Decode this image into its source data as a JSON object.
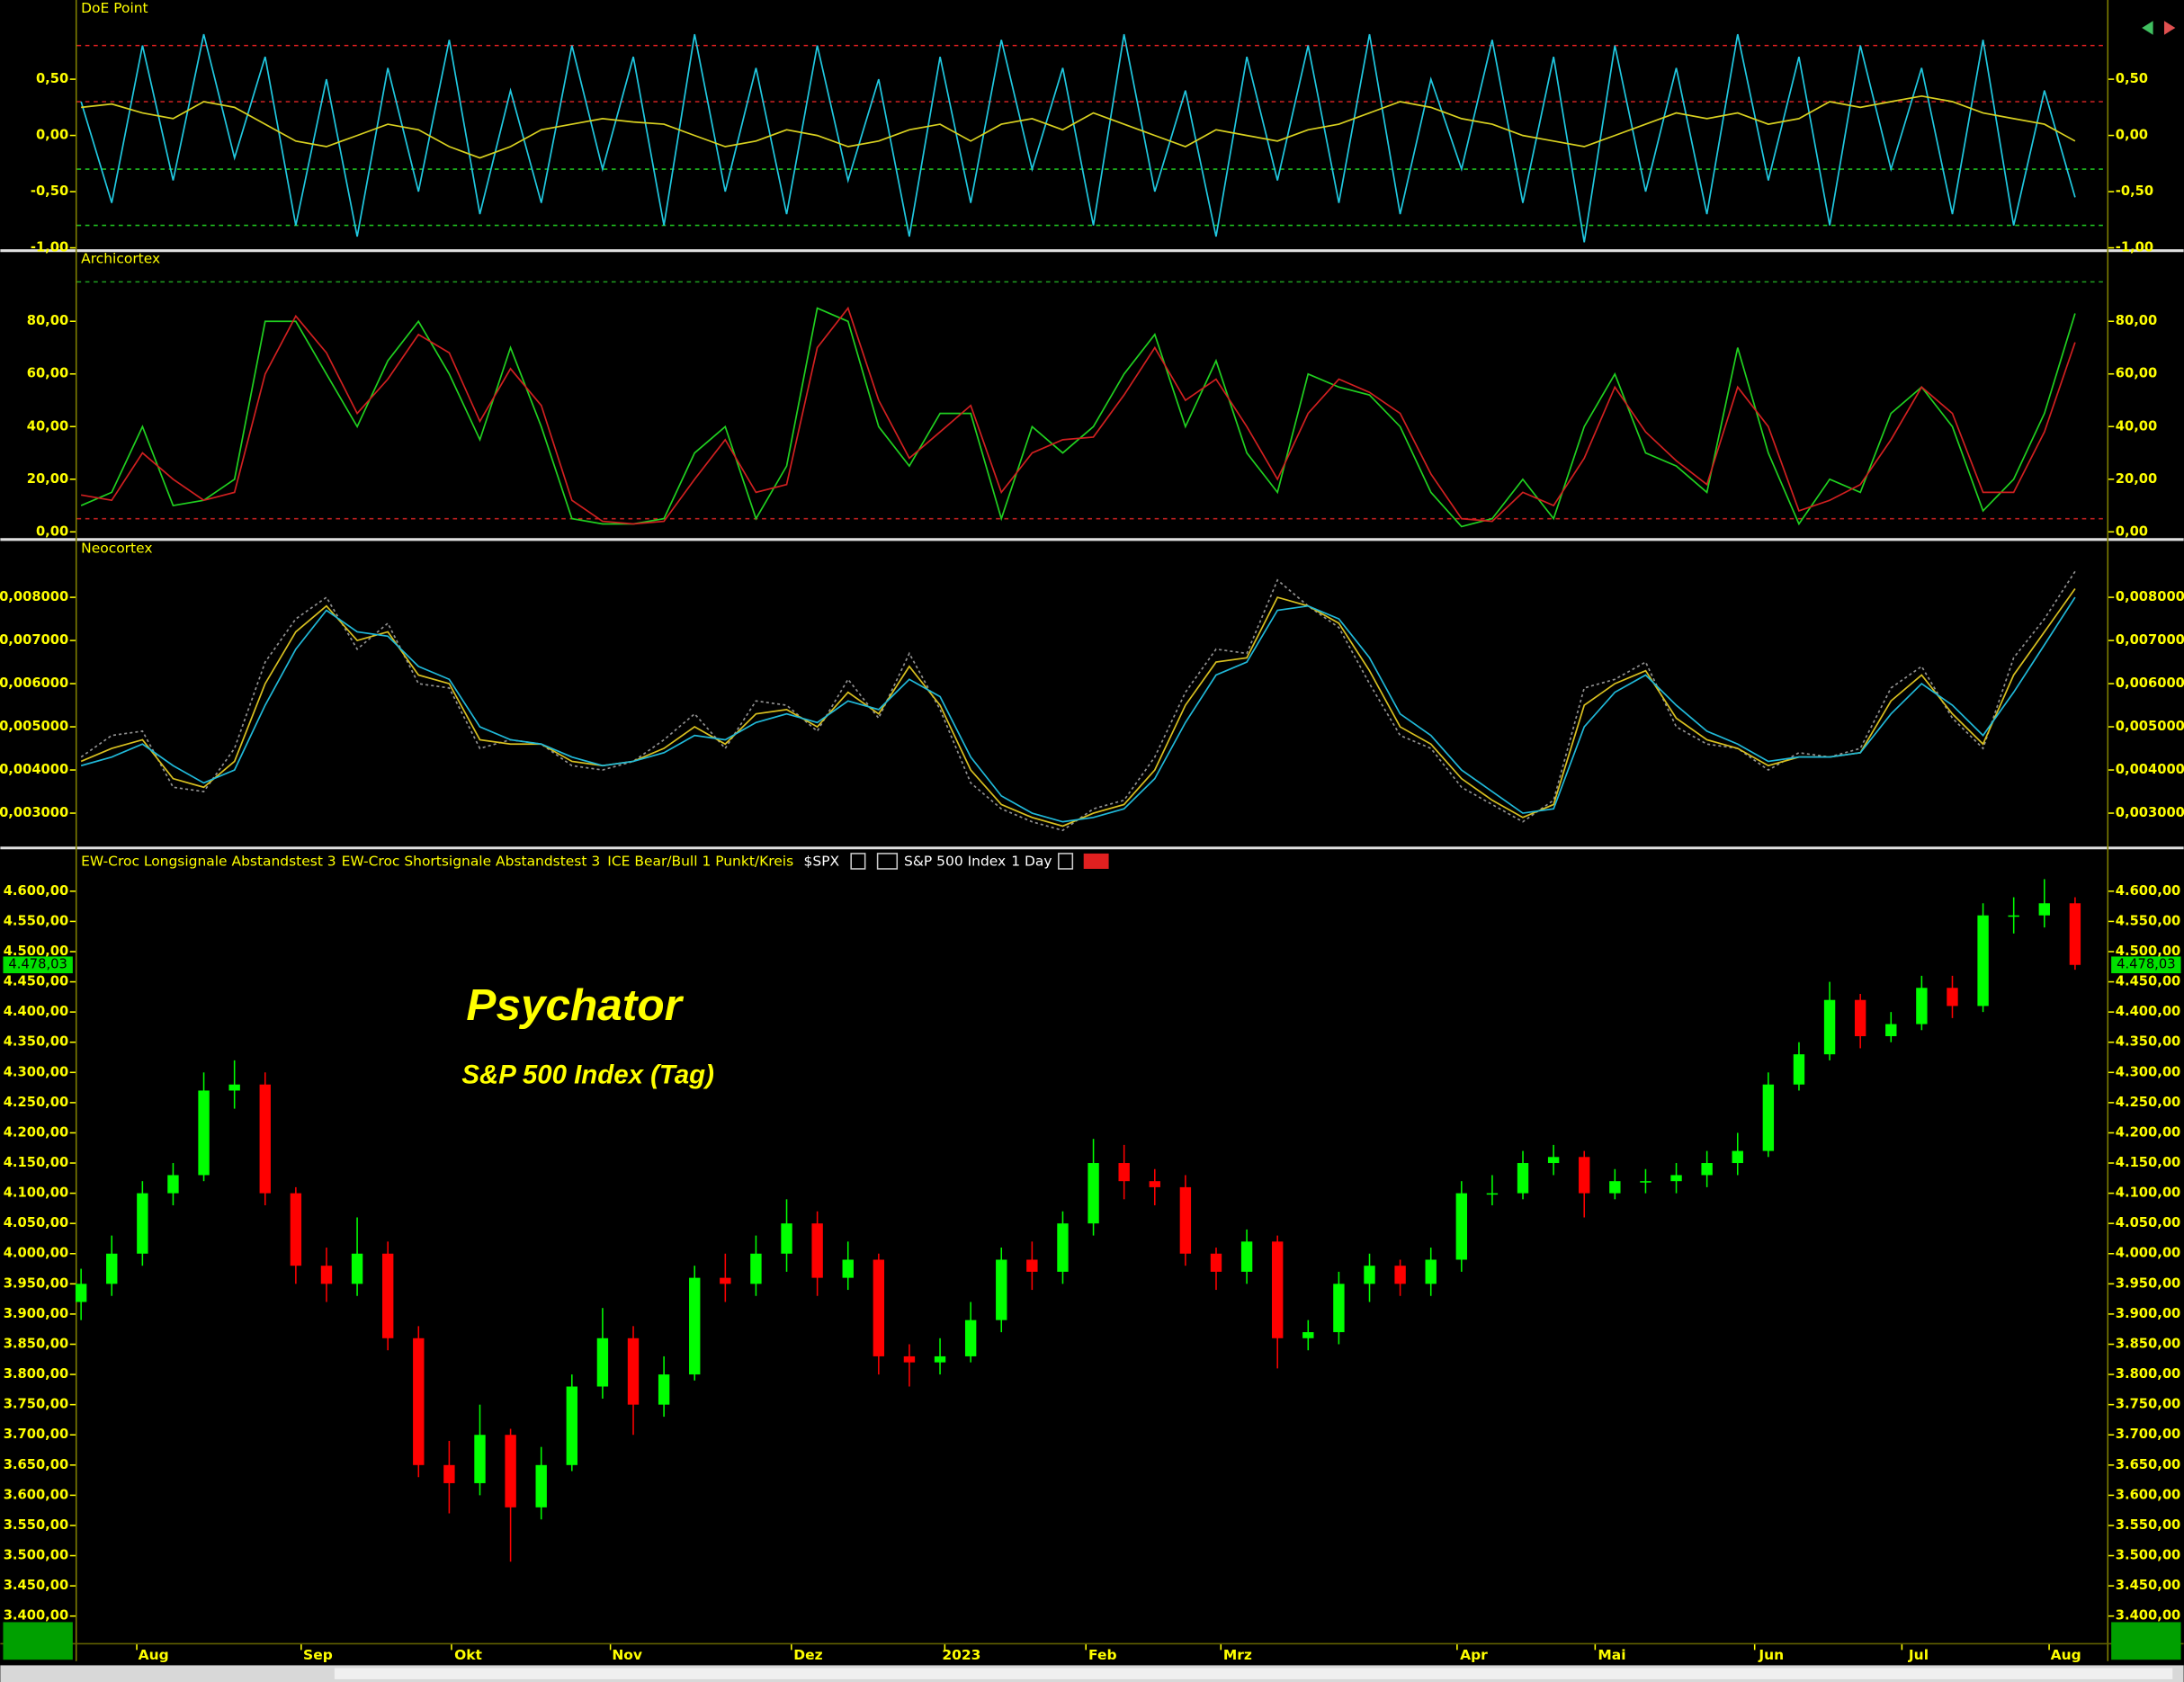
{
  "chart_data": [
    {
      "type": "line",
      "title": "DoE Point",
      "ylim": [
        -1.0,
        1.18
      ],
      "yticks": [
        {
          "value": -1.0,
          "label": "-1,00"
        },
        {
          "value": -0.5,
          "label": "-0,50"
        },
        {
          "value": 0,
          "label": "0,00"
        },
        {
          "value": 0.5,
          "label": "0,50"
        }
      ],
      "hlines": [
        {
          "value": 0.8,
          "color": "#e02020"
        },
        {
          "value": 0.3,
          "color": "#c02020"
        },
        {
          "value": -0.3,
          "color": "#20c020"
        },
        {
          "value": -0.8,
          "color": "#20c020"
        }
      ],
      "series": [
        {
          "color": "#20c8e0",
          "values": [
            0.3,
            -0.6,
            0.8,
            -0.4,
            0.9,
            -0.2,
            0.7,
            -0.8,
            0.5,
            -0.9,
            0.6,
            -0.5,
            0.85,
            -0.7,
            0.4,
            -0.6,
            0.8,
            -0.3,
            0.7,
            -0.8,
            0.9,
            -0.5,
            0.6,
            -0.7,
            0.8,
            -0.4,
            0.5,
            -0.9,
            0.7,
            -0.6,
            0.85,
            -0.3,
            0.6,
            -0.8,
            0.9,
            -0.5,
            0.4,
            -0.9,
            0.7,
            -0.4,
            0.8,
            -0.6,
            0.9,
            -0.7,
            0.5,
            -0.3,
            0.85,
            -0.6,
            0.7,
            -0.95,
            0.8,
            -0.5,
            0.6,
            -0.7,
            0.9,
            -0.4,
            0.7,
            -0.8,
            0.8,
            -0.3,
            0.6,
            -0.7,
            0.85,
            -0.8,
            0.4,
            -0.55
          ]
        },
        {
          "color": "#d8d020",
          "values": [
            0.25,
            0.28,
            0.2,
            0.15,
            0.3,
            0.25,
            0.1,
            -0.05,
            -0.1,
            0.0,
            0.1,
            0.05,
            -0.1,
            -0.2,
            -0.1,
            0.05,
            0.1,
            0.15,
            0.12,
            0.1,
            0.0,
            -0.1,
            -0.05,
            0.05,
            0.0,
            -0.1,
            -0.05,
            0.05,
            0.1,
            -0.05,
            0.1,
            0.15,
            0.05,
            0.2,
            0.1,
            0.0,
            -0.1,
            0.05,
            0.0,
            -0.05,
            0.05,
            0.1,
            0.2,
            0.3,
            0.25,
            0.15,
            0.1,
            0.0,
            -0.05,
            -0.1,
            0.0,
            0.1,
            0.2,
            0.15,
            0.2,
            0.1,
            0.15,
            0.3,
            0.25,
            0.3,
            0.35,
            0.3,
            0.2,
            0.15,
            0.1,
            -0.05
          ]
        }
      ]
    },
    {
      "type": "line",
      "title": "Archicortex",
      "ylim": [
        -1.6,
        105.8
      ],
      "yticks": [
        {
          "value": 0,
          "label": "0,00"
        },
        {
          "value": 20,
          "label": "20,00"
        },
        {
          "value": 40,
          "label": "40,00"
        },
        {
          "value": 60,
          "label": "60,00"
        },
        {
          "value": 80,
          "label": "80,00"
        }
      ],
      "hlines": [
        {
          "value": 95,
          "color": "#20a020"
        },
        {
          "value": 5,
          "color": "#c02020"
        }
      ],
      "series": [
        {
          "color": "#20d020",
          "values": [
            10,
            15,
            40,
            10,
            12,
            20,
            80,
            80,
            60,
            40,
            65,
            80,
            60,
            35,
            70,
            40,
            5,
            3,
            3,
            5,
            30,
            40,
            5,
            25,
            85,
            80,
            40,
            25,
            45,
            45,
            5,
            40,
            30,
            40,
            60,
            75,
            40,
            65,
            30,
            15,
            60,
            55,
            52,
            40,
            15,
            2,
            5,
            20,
            5,
            40,
            60,
            30,
            25,
            15,
            70,
            30,
            3,
            20,
            15,
            45,
            55,
            40,
            8,
            20,
            45,
            83
          ]
        },
        {
          "color": "#d02020",
          "values": [
            14,
            12,
            30,
            20,
            12,
            15,
            60,
            82,
            68,
            45,
            58,
            75,
            68,
            42,
            62,
            48,
            12,
            4,
            3,
            4,
            20,
            35,
            15,
            18,
            70,
            85,
            50,
            28,
            38,
            48,
            15,
            30,
            35,
            36,
            52,
            70,
            50,
            58,
            40,
            20,
            45,
            58,
            53,
            45,
            22,
            5,
            4,
            15,
            10,
            28,
            55,
            38,
            27,
            18,
            55,
            40,
            8,
            12,
            18,
            35,
            55,
            45,
            15,
            15,
            38,
            72
          ]
        }
      ]
    },
    {
      "type": "line",
      "title": "Neocortex",
      "ylim": [
        0.002258,
        0.009258
      ],
      "yticks": [
        {
          "value": 0.003,
          "label": "0,003000"
        },
        {
          "value": 0.004,
          "label": "0,004000"
        },
        {
          "value": 0.005,
          "label": "0,005000"
        },
        {
          "value": 0.006,
          "label": "0,006000"
        },
        {
          "value": 0.007,
          "label": "0,007000"
        },
        {
          "value": 0.008,
          "label": "0,008000"
        }
      ],
      "series": [
        {
          "color": "#909090",
          "style": "dotted",
          "values": [
            0.0043,
            0.0048,
            0.0049,
            0.0036,
            0.0035,
            0.0045,
            0.0065,
            0.0075,
            0.008,
            0.0068,
            0.0074,
            0.006,
            0.0059,
            0.0045,
            0.0047,
            0.0046,
            0.0041,
            0.004,
            0.0042,
            0.0047,
            0.0053,
            0.0045,
            0.0056,
            0.0055,
            0.0049,
            0.0061,
            0.0052,
            0.0067,
            0.0054,
            0.0037,
            0.0031,
            0.0028,
            0.0026,
            0.0031,
            0.0033,
            0.0043,
            0.0058,
            0.0068,
            0.0067,
            0.0084,
            0.0078,
            0.0073,
            0.006,
            0.0048,
            0.0045,
            0.0036,
            0.0032,
            0.0028,
            0.0033,
            0.0059,
            0.0061,
            0.0065,
            0.005,
            0.0046,
            0.0045,
            0.004,
            0.0044,
            0.0043,
            0.0045,
            0.0059,
            0.0064,
            0.0052,
            0.0045,
            0.0066,
            0.0075,
            0.0086
          ]
        },
        {
          "color": "#d8c020",
          "values": [
            0.0042,
            0.0045,
            0.0047,
            0.0038,
            0.0036,
            0.0042,
            0.006,
            0.0072,
            0.0078,
            0.007,
            0.0072,
            0.0062,
            0.006,
            0.0047,
            0.0046,
            0.0046,
            0.0042,
            0.0041,
            0.0042,
            0.0045,
            0.005,
            0.0046,
            0.0053,
            0.0054,
            0.005,
            0.0058,
            0.0053,
            0.0064,
            0.0055,
            0.004,
            0.0032,
            0.0029,
            0.0027,
            0.003,
            0.0032,
            0.004,
            0.0055,
            0.0065,
            0.0066,
            0.008,
            0.0078,
            0.0074,
            0.0063,
            0.005,
            0.0046,
            0.0038,
            0.0033,
            0.0029,
            0.0032,
            0.0055,
            0.006,
            0.0063,
            0.0052,
            0.0047,
            0.0045,
            0.0041,
            0.0043,
            0.0043,
            0.0044,
            0.0056,
            0.0062,
            0.0053,
            0.0046,
            0.0062,
            0.0072,
            0.0082
          ]
        },
        {
          "color": "#20b8d8",
          "values": [
            0.0041,
            0.0043,
            0.0046,
            0.0041,
            0.0037,
            0.004,
            0.0055,
            0.0068,
            0.0077,
            0.0072,
            0.0071,
            0.0064,
            0.0061,
            0.005,
            0.0047,
            0.0046,
            0.0043,
            0.0041,
            0.0042,
            0.0044,
            0.0048,
            0.0047,
            0.0051,
            0.0053,
            0.0051,
            0.0056,
            0.0054,
            0.0061,
            0.0057,
            0.0043,
            0.0034,
            0.003,
            0.0028,
            0.0029,
            0.0031,
            0.0038,
            0.0051,
            0.0062,
            0.0065,
            0.0077,
            0.0078,
            0.0075,
            0.0066,
            0.0053,
            0.0048,
            0.004,
            0.0035,
            0.003,
            0.0031,
            0.005,
            0.0058,
            0.0062,
            0.0055,
            0.0049,
            0.0046,
            0.0042,
            0.0043,
            0.0043,
            0.0044,
            0.0053,
            0.006,
            0.0055,
            0.0048,
            0.0058,
            0.0069,
            0.008
          ]
        }
      ]
    },
    {
      "type": "candlestick",
      "title": "Psychator",
      "subtitle": "S&P 500 Index (Tag)",
      "studies": [
        "EW-Croc Longsignale Abstandstest 3",
        "EW-Croc Shortsignale Abstandstest 3",
        "ICE Bear/Bull 1 Punkt/Kreis"
      ],
      "symbol": "$SPX",
      "instrument": "S&P 500 Index",
      "interval": "1 Day",
      "up_color": "#00ff00",
      "down_color": "#ff0000",
      "last": {
        "value": 4478.03,
        "label": "4.478,03"
      },
      "ylim": [
        3360,
        4667
      ],
      "yticks": [
        {
          "value": 3400,
          "label": "3.400,00"
        },
        {
          "value": 3450,
          "label": "3.450,00"
        },
        {
          "value": 3500,
          "label": "3.500,00"
        },
        {
          "value": 3550,
          "label": "3.550,00"
        },
        {
          "value": 3600,
          "label": "3.600,00"
        },
        {
          "value": 3650,
          "label": "3.650,00"
        },
        {
          "value": 3700,
          "label": "3.700,00"
        },
        {
          "value": 3750,
          "label": "3.750,00"
        },
        {
          "value": 3800,
          "label": "3.800,00"
        },
        {
          "value": 3850,
          "label": "3.850,00"
        },
        {
          "value": 3900,
          "label": "3.900,00"
        },
        {
          "value": 3950,
          "label": "3.950,00"
        },
        {
          "value": 4000,
          "label": "4.000,00"
        },
        {
          "value": 4050,
          "label": "4.050,00"
        },
        {
          "value": 4100,
          "label": "4.100,00"
        },
        {
          "value": 4150,
          "label": "4.150,00"
        },
        {
          "value": 4200,
          "label": "4.200,00"
        },
        {
          "value": 4250,
          "label": "4.250,00"
        },
        {
          "value": 4300,
          "label": "4.300,00"
        },
        {
          "value": 4350,
          "label": "4.350,00"
        },
        {
          "value": 4400,
          "label": "4.400,00"
        },
        {
          "value": 4450,
          "label": "4.450,00"
        },
        {
          "value": 4500,
          "label": "4.500,00"
        },
        {
          "value": 4550,
          "label": "4.550,00"
        },
        {
          "value": 4600,
          "label": "4.600,00"
        }
      ],
      "xticks": [
        {
          "value": 2.36,
          "label": "Aug"
        },
        {
          "value": 7.72,
          "label": "Sep"
        },
        {
          "value": 12.62,
          "label": "Okt"
        },
        {
          "value": 17.8,
          "label": "Nov"
        },
        {
          "value": 23.7,
          "label": "Dez"
        },
        {
          "value": 28.7,
          "label": "2023"
        },
        {
          "value": 33.3,
          "label": "Feb"
        },
        {
          "value": 37.7,
          "label": "Mrz"
        },
        {
          "value": 45.4,
          "label": "Apr"
        },
        {
          "value": 49.9,
          "label": "Mai"
        },
        {
          "value": 55.1,
          "label": "Jun"
        },
        {
          "value": 59.9,
          "label": "Jul"
        },
        {
          "value": 64.7,
          "label": "Aug"
        }
      ],
      "open": [
        3920,
        3950,
        4000,
        4100,
        4130,
        4270,
        4280,
        4100,
        3980,
        3950,
        4000,
        3860,
        3650,
        3620,
        3700,
        3580,
        3650,
        3780,
        3860,
        3750,
        3800,
        3960,
        3950,
        4000,
        4050,
        3960,
        3990,
        3830,
        3820,
        3830,
        3890,
        3990,
        3970,
        4050,
        4150,
        4120,
        4110,
        4000,
        3970,
        4020,
        3860,
        3870,
        3950,
        3980,
        3950,
        3990,
        4100,
        4100,
        4150,
        4160,
        4100,
        4120,
        4120,
        4130,
        4150,
        4170,
        4280,
        4330,
        4420,
        4360,
        4380,
        4440,
        4410,
        4560,
        4560,
        4580
      ],
      "high": [
        3975,
        4030,
        4120,
        4150,
        4300,
        4320,
        4300,
        4110,
        4010,
        4060,
        4020,
        3880,
        3690,
        3750,
        3710,
        3680,
        3800,
        3910,
        3880,
        3830,
        3980,
        4000,
        4030,
        4090,
        4070,
        4020,
        4000,
        3850,
        3860,
        3920,
        4010,
        4020,
        4070,
        4190,
        4180,
        4140,
        4130,
        4010,
        4040,
        4030,
        3890,
        3970,
        4000,
        3990,
        4010,
        4120,
        4130,
        4170,
        4180,
        4170,
        4140,
        4140,
        4150,
        4170,
        4200,
        4300,
        4350,
        4450,
        4430,
        4400,
        4460,
        4460,
        4580,
        4590,
        4620,
        4590
      ],
      "low": [
        3890,
        3930,
        3980,
        4080,
        4120,
        4240,
        4080,
        3950,
        3920,
        3930,
        3840,
        3630,
        3570,
        3600,
        3490,
        3560,
        3640,
        3760,
        3700,
        3730,
        3790,
        3920,
        3930,
        3970,
        3930,
        3940,
        3800,
        3780,
        3800,
        3820,
        3870,
        3940,
        3950,
        4030,
        4090,
        4080,
        3980,
        3940,
        3950,
        3810,
        3840,
        3850,
        3920,
        3930,
        3930,
        3970,
        4080,
        4090,
        4130,
        4060,
        4090,
        4100,
        4100,
        4110,
        4130,
        4160,
        4270,
        4320,
        4340,
        4350,
        4370,
        4390,
        4400,
        4530,
        4540,
        4470
      ],
      "close": [
        3950,
        4000,
        4100,
        4130,
        4270,
        4280,
        4100,
        3980,
        3950,
        4000,
        3860,
        3650,
        3620,
        3700,
        3580,
        3650,
        3780,
        3860,
        3750,
        3800,
        3960,
        3950,
        4000,
        4050,
        3960,
        3990,
        3830,
        3820,
        3830,
        3890,
        3990,
        3970,
        4050,
        4150,
        4120,
        4110,
        4000,
        3970,
        4020,
        3860,
        3870,
        3950,
        3980,
        3950,
        3990,
        4100,
        4100,
        4150,
        4160,
        4100,
        4120,
        4120,
        4130,
        4150,
        4170,
        4280,
        4330,
        4420,
        4360,
        4380,
        4440,
        4410,
        4560,
        4560,
        4580,
        4478
      ]
    }
  ]
}
